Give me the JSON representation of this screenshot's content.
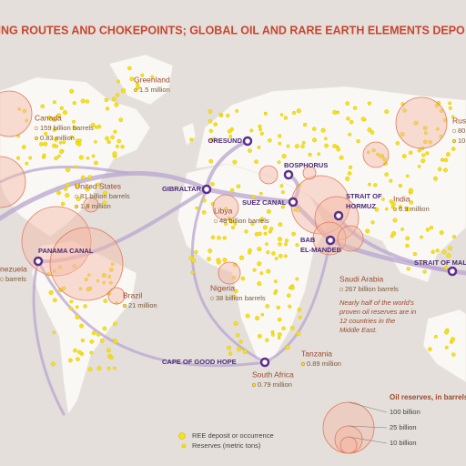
{
  "title": "PING ROUTES AND CHOKEPOINTS; GLOBAL OIL AND RARE EARTH ELEMENTS DEPO",
  "countries": [
    {
      "name": "Greenland",
      "lines": [
        "1.5 million"
      ]
    },
    {
      "name": "Canada",
      "lines": [
        "159 billion barrels",
        "0.83 million"
      ]
    },
    {
      "name": "United States",
      "lines": [
        "81 billion barrels",
        "1.8 million"
      ]
    },
    {
      "name": "Rus",
      "lines": [
        "80",
        "10"
      ]
    },
    {
      "name": "Libya",
      "lines": [
        "48 billion barrels"
      ]
    },
    {
      "name": "India",
      "lines": [
        "6.9 million"
      ]
    },
    {
      "name": "nezuela",
      "lines": [
        "barrels"
      ]
    },
    {
      "name": "Brazil",
      "lines": [
        "21 million"
      ]
    },
    {
      "name": "Nigeria",
      "lines": [
        "38 billion barrels"
      ]
    },
    {
      "name": "Saudi Arabia",
      "lines": [
        "267 billion barrels"
      ]
    },
    {
      "name": "Tanzania",
      "lines": [
        "0.89 million"
      ]
    },
    {
      "name": "South Africa",
      "lines": [
        "0.79 million"
      ]
    }
  ],
  "chokepoints": [
    {
      "lines": [
        "ORESUND"
      ]
    },
    {
      "lines": [
        "BOSPHORUS"
      ]
    },
    {
      "lines": [
        "GIBRALTAR"
      ]
    },
    {
      "lines": [
        "SUEZ CANAL"
      ]
    },
    {
      "lines": [
        "STRAIT OF",
        "HORMUZ"
      ]
    },
    {
      "lines": [
        "BAB",
        "EL-MANDEB"
      ]
    },
    {
      "lines": [
        "PANAMA CANAL"
      ]
    },
    {
      "lines": [
        "STRAIT OF MAL"
      ]
    },
    {
      "lines": [
        "CAPE OF GOOD HOPE"
      ]
    }
  ],
  "note": [
    "Nearly half of the world's",
    "proven oil reserves are in",
    "12 countries in the",
    "Middle East."
  ],
  "legend": {
    "oil_title": "Oil reserves, in barrels",
    "oil_sizes": [
      "100 billion",
      "25 billion",
      "10 billion"
    ],
    "ree": "REE deposit or occurrence",
    "ree_reserves": "Reserves (metric tons)"
  }
}
